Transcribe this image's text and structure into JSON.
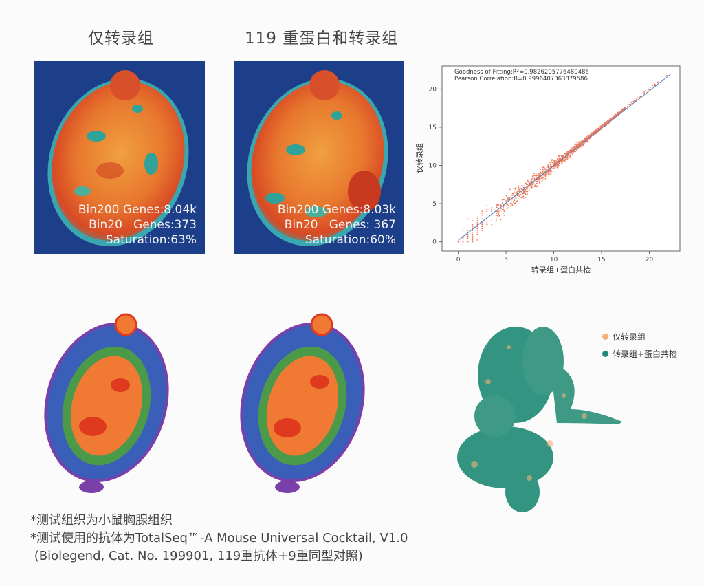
{
  "titles": {
    "left": "仅转录组",
    "middle": "119 重蛋白和转录组"
  },
  "panels": [
    {
      "bin200": "Bin200 Genes:8.04k",
      "bin20": "Bin20   Genes:373",
      "saturation": "Saturation:63%"
    },
    {
      "bin200": "Bin200 Genes:8.03k",
      "bin20": "Bin20   Genes: 367",
      "saturation": "Saturation:60%"
    }
  ],
  "chart_data": {
    "type": "scatter",
    "xlabel": "转录组+蛋白共检",
    "ylabel": "仅转录组",
    "annotations": [
      "Goodness of Fitting:R²=0.9826205776480486",
      "Pearson Correlation:R=0.9996407363879586"
    ],
    "xlim": [
      -1.7,
      23.2
    ],
    "ylim": [
      -1.2,
      23.0
    ],
    "xticks": [
      0,
      5,
      10,
      15,
      20
    ],
    "yticks": [
      0,
      5,
      10,
      15,
      20
    ],
    "fit_line": {
      "x": [
        0,
        22.3
      ],
      "y": [
        0.2,
        22.0
      ]
    },
    "point_color": "#f07a5a",
    "line_color": "#4a7fc0",
    "point_range": {
      "x": [
        0,
        22.3
      ],
      "y": [
        0,
        22.2
      ]
    }
  },
  "umap_legend": [
    {
      "label": "仅转录组",
      "color": "#f2b27a"
    },
    {
      "label": "转录组+蛋白共检",
      "color": "#1e8a74"
    }
  ],
  "notes": [
    "*测试组织为小鼠胸腺组织",
    "*测试使用的抗体为TotalSeq™-A Mouse Universal Cocktail, V1.0",
    " (Biolegend, Cat. No. 199901, 119重抗体+9重同型对照)"
  ]
}
